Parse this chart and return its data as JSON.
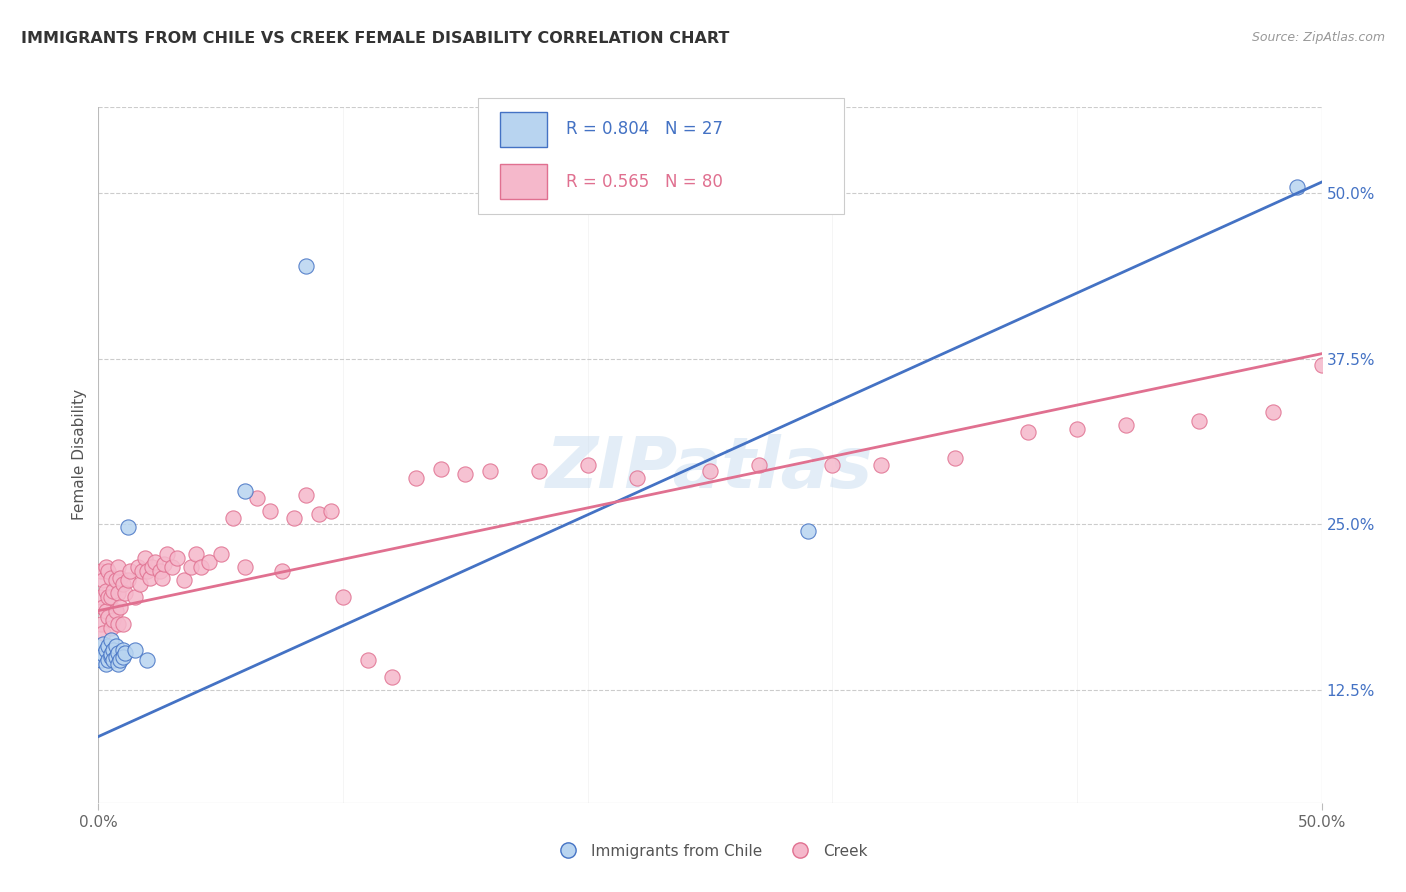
{
  "title": "IMMIGRANTS FROM CHILE VS CREEK FEMALE DISABILITY CORRELATION CHART",
  "source": "Source: ZipAtlas.com",
  "ylabel": "Female Disability",
  "yticks_labels": [
    "12.5%",
    "25.0%",
    "37.5%",
    "50.0%"
  ],
  "ytick_vals": [
    0.125,
    0.25,
    0.375,
    0.5
  ],
  "xlim": [
    0.0,
    0.5
  ],
  "ylim": [
    0.04,
    0.565
  ],
  "series1_name": "Immigrants from Chile",
  "series1_color": "#b8d4f0",
  "series1_edge_color": "#4472c4",
  "series1_line_color": "#4472c4",
  "series1_R": "0.804",
  "series1_N": "27",
  "series2_name": "Creek",
  "series2_color": "#f5b8cb",
  "series2_edge_color": "#e07090",
  "series2_line_color": "#e07090",
  "series2_R": "0.565",
  "series2_N": "80",
  "watermark": "ZIPatlas",
  "chile_x": [
    0.001,
    0.002,
    0.002,
    0.003,
    0.003,
    0.004,
    0.004,
    0.005,
    0.005,
    0.005,
    0.006,
    0.006,
    0.007,
    0.007,
    0.008,
    0.008,
    0.009,
    0.01,
    0.01,
    0.011,
    0.012,
    0.015,
    0.02,
    0.06,
    0.085,
    0.29,
    0.49
  ],
  "chile_y": [
    0.148,
    0.152,
    0.16,
    0.145,
    0.155,
    0.148,
    0.158,
    0.15,
    0.152,
    0.163,
    0.155,
    0.148,
    0.15,
    0.158,
    0.145,
    0.153,
    0.148,
    0.155,
    0.15,
    0.153,
    0.248,
    0.155,
    0.148,
    0.275,
    0.445,
    0.245,
    0.505
  ],
  "creek_x": [
    0.001,
    0.001,
    0.001,
    0.002,
    0.002,
    0.002,
    0.003,
    0.003,
    0.003,
    0.004,
    0.004,
    0.004,
    0.005,
    0.005,
    0.005,
    0.006,
    0.006,
    0.007,
    0.007,
    0.008,
    0.008,
    0.008,
    0.009,
    0.009,
    0.01,
    0.01,
    0.011,
    0.012,
    0.013,
    0.015,
    0.016,
    0.017,
    0.018,
    0.019,
    0.02,
    0.021,
    0.022,
    0.023,
    0.025,
    0.026,
    0.027,
    0.028,
    0.03,
    0.032,
    0.035,
    0.038,
    0.04,
    0.042,
    0.045,
    0.05,
    0.055,
    0.06,
    0.065,
    0.07,
    0.075,
    0.08,
    0.085,
    0.09,
    0.095,
    0.1,
    0.11,
    0.12,
    0.13,
    0.14,
    0.15,
    0.16,
    0.18,
    0.2,
    0.22,
    0.25,
    0.27,
    0.3,
    0.32,
    0.35,
    0.38,
    0.4,
    0.42,
    0.45,
    0.48,
    0.5
  ],
  "creek_y": [
    0.175,
    0.195,
    0.215,
    0.168,
    0.188,
    0.208,
    0.185,
    0.2,
    0.218,
    0.18,
    0.195,
    0.215,
    0.172,
    0.195,
    0.21,
    0.178,
    0.2,
    0.185,
    0.208,
    0.175,
    0.198,
    0.218,
    0.188,
    0.21,
    0.175,
    0.205,
    0.198,
    0.208,
    0.215,
    0.195,
    0.218,
    0.205,
    0.215,
    0.225,
    0.215,
    0.21,
    0.218,
    0.222,
    0.215,
    0.21,
    0.22,
    0.228,
    0.218,
    0.225,
    0.208,
    0.218,
    0.228,
    0.218,
    0.222,
    0.228,
    0.255,
    0.218,
    0.27,
    0.26,
    0.215,
    0.255,
    0.272,
    0.258,
    0.26,
    0.195,
    0.148,
    0.135,
    0.285,
    0.292,
    0.288,
    0.29,
    0.29,
    0.295,
    0.285,
    0.29,
    0.295,
    0.295,
    0.295,
    0.3,
    0.32,
    0.322,
    0.325,
    0.328,
    0.335,
    0.37
  ]
}
